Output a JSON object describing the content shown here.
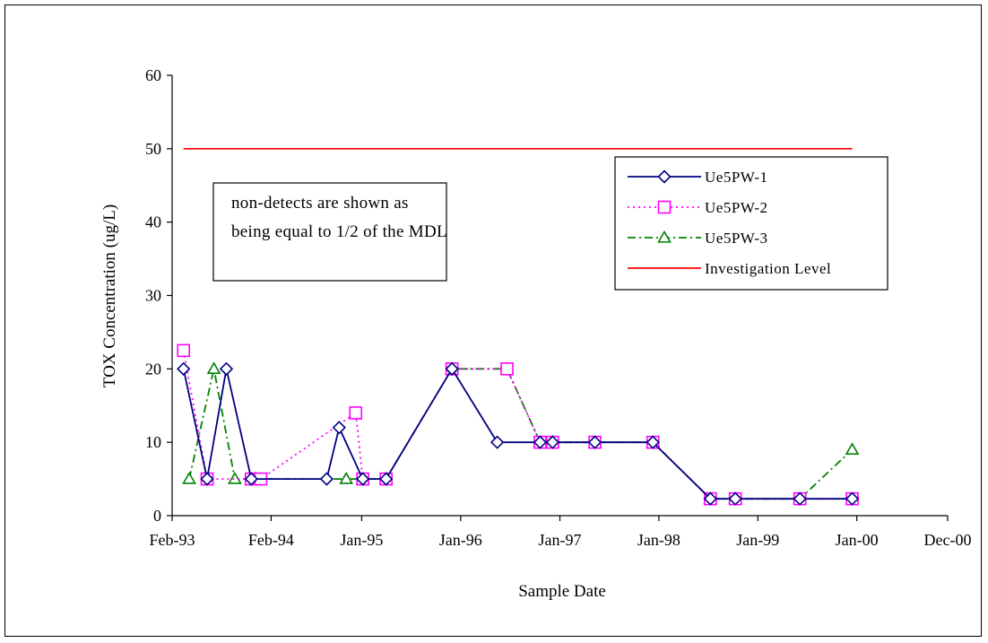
{
  "chart_data": {
    "type": "line",
    "title": "",
    "xlabel": "Sample Date",
    "ylabel": "TOX  Concentration (ug/L)",
    "ylim": [
      0,
      60
    ],
    "yticks": [
      0,
      10,
      20,
      30,
      40,
      50,
      60
    ],
    "xlim": [
      "1993-02-01",
      "2000-12-01"
    ],
    "xticks": [
      {
        "date": "1993-02-01",
        "label": "Feb-93"
      },
      {
        "date": "1994-02-01",
        "label": "Feb-94"
      },
      {
        "date": "1995-01-01",
        "label": "Jan-95"
      },
      {
        "date": "1996-01-01",
        "label": "Jan-96"
      },
      {
        "date": "1997-01-01",
        "label": "Jan-97"
      },
      {
        "date": "1998-01-01",
        "label": "Jan-98"
      },
      {
        "date": "1999-01-01",
        "label": "Jan-99"
      },
      {
        "date": "2000-01-01",
        "label": "Jan-00"
      },
      {
        "date": "2000-12-01",
        "label": "Dec-00"
      }
    ],
    "grid": false,
    "legend_position": "right",
    "series": [
      {
        "name": "Ue5PW-1",
        "color": "#000080",
        "marker": "diamond",
        "line": "solid",
        "points": [
          {
            "x": "1993-03-15",
            "y": 20
          },
          {
            "x": "1993-06-10",
            "y": 5
          },
          {
            "x": "1993-08-20",
            "y": 20
          },
          {
            "x": "1993-11-20",
            "y": 5
          },
          {
            "x": "1994-08-25",
            "y": 5
          },
          {
            "x": "1994-10-10",
            "y": 12
          },
          {
            "x": "1995-01-05",
            "y": 5
          },
          {
            "x": "1995-04-01",
            "y": 5
          },
          {
            "x": "1995-11-30",
            "y": 20
          },
          {
            "x": "1996-05-15",
            "y": 10
          },
          {
            "x": "1996-10-20",
            "y": 10
          },
          {
            "x": "1996-12-05",
            "y": 10
          },
          {
            "x": "1997-05-10",
            "y": 10
          },
          {
            "x": "1997-12-10",
            "y": 10
          },
          {
            "x": "1998-07-10",
            "y": 2.3
          },
          {
            "x": "1998-10-10",
            "y": 2.3
          },
          {
            "x": "1999-06-05",
            "y": 2.3
          },
          {
            "x": "1999-12-15",
            "y": 2.3
          }
        ]
      },
      {
        "name": "Ue5PW-2",
        "color": "#FF00FF",
        "marker": "square",
        "line": "dotted",
        "points": [
          {
            "x": "1993-03-15",
            "y": 22.5
          },
          {
            "x": "1993-06-10",
            "y": 5
          },
          {
            "x": "1993-11-20",
            "y": 5
          },
          {
            "x": "1993-12-25",
            "y": 5
          },
          {
            "x": "1994-12-10",
            "y": 14
          },
          {
            "x": "1995-01-05",
            "y": 5
          },
          {
            "x": "1995-04-01",
            "y": 5
          },
          {
            "x": "1995-11-30",
            "y": 20
          },
          {
            "x": "1996-06-20",
            "y": 20
          },
          {
            "x": "1996-10-20",
            "y": 10
          },
          {
            "x": "1996-12-05",
            "y": 10
          },
          {
            "x": "1997-05-10",
            "y": 10
          },
          {
            "x": "1997-12-10",
            "y": 10
          },
          {
            "x": "1998-07-10",
            "y": 2.3
          },
          {
            "x": "1998-10-10",
            "y": 2.3
          },
          {
            "x": "1999-06-05",
            "y": 2.3
          },
          {
            "x": "1999-12-15",
            "y": 2.3
          }
        ]
      },
      {
        "name": "Ue5PW-3",
        "color": "#008000",
        "marker": "triangle",
        "line": "dashdot",
        "points": [
          {
            "x": "1993-04-05",
            "y": 5
          },
          {
            "x": "1993-07-05",
            "y": 20
          },
          {
            "x": "1993-09-20",
            "y": 5
          },
          {
            "x": "1993-12-05",
            "y": 5
          },
          {
            "x": "1994-11-05",
            "y": 5
          },
          {
            "x": "1995-01-05",
            "y": 5
          },
          {
            "x": "1995-04-01",
            "y": 5
          },
          {
            "x": "1995-11-30",
            "y": 20
          },
          {
            "x": "1996-06-20",
            "y": 20
          },
          {
            "x": "1996-10-20",
            "y": 10
          },
          {
            "x": "1996-12-05",
            "y": 10
          },
          {
            "x": "1997-05-10",
            "y": 10
          },
          {
            "x": "1997-12-10",
            "y": 10
          },
          {
            "x": "1998-07-10",
            "y": 2.3
          },
          {
            "x": "1998-10-10",
            "y": 2.3
          },
          {
            "x": "1999-06-05",
            "y": 2.3
          },
          {
            "x": "1999-12-15",
            "y": 9
          }
        ]
      },
      {
        "name": "Investigation Level",
        "color": "#FF0000",
        "marker": "none",
        "line": "solid",
        "points": [
          {
            "x": "1993-03-15",
            "y": 50
          },
          {
            "x": "1999-12-15",
            "y": 50
          }
        ]
      }
    ],
    "annotation": {
      "lines": [
        "non-detects are shown as",
        "being  equal to 1/2 of the MDL"
      ]
    }
  }
}
